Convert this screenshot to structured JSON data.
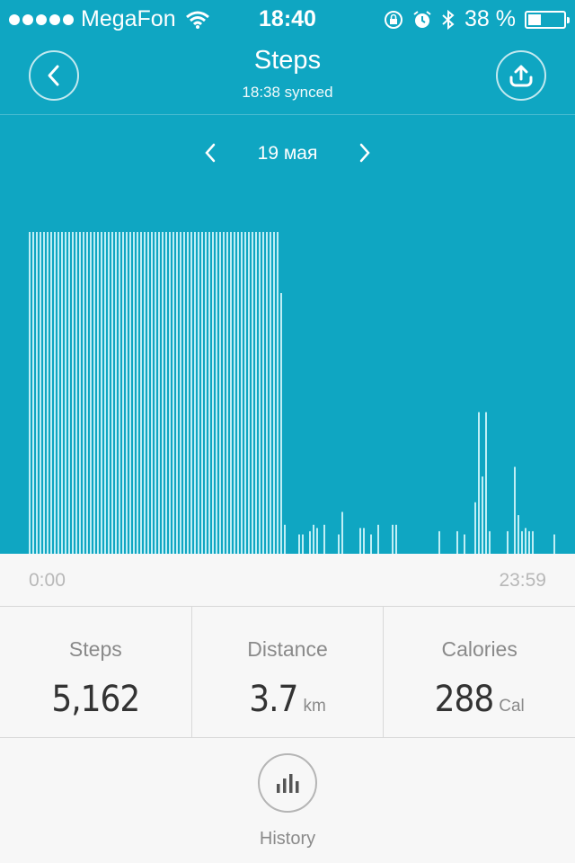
{
  "status_bar": {
    "carrier": "MegaFon",
    "time": "18:40",
    "battery_percent": "38 %",
    "battery_level": 0.38,
    "icons": [
      "signal-dots-icon",
      "wifi-icon",
      "rotation-lock-icon",
      "alarm-icon",
      "bluetooth-icon",
      "battery-icon"
    ]
  },
  "header": {
    "title": "Steps",
    "subtitle": "18:38 synced",
    "back_icon": "chevron-left-icon",
    "upload_icon": "upload-icon"
  },
  "date_nav": {
    "date": "19 мая",
    "prev_icon": "chevron-left-icon",
    "next_icon": "chevron-right-icon"
  },
  "chart_data": {
    "type": "bar",
    "x_start_label": "0:00",
    "x_end_label": "23:59",
    "bar_color": "#bfeef5",
    "background": "#0fa6c2",
    "values": [
      100,
      100,
      100,
      100,
      100,
      100,
      100,
      100,
      100,
      100,
      100,
      100,
      100,
      100,
      100,
      100,
      100,
      100,
      100,
      100,
      100,
      100,
      100,
      100,
      100,
      100,
      100,
      100,
      100,
      100,
      100,
      100,
      100,
      100,
      100,
      100,
      100,
      100,
      100,
      100,
      100,
      100,
      100,
      100,
      100,
      100,
      100,
      100,
      100,
      100,
      100,
      100,
      100,
      100,
      100,
      100,
      100,
      100,
      100,
      100,
      100,
      100,
      100,
      100,
      100,
      100,
      100,
      100,
      100,
      100,
      81,
      9,
      0,
      0,
      0,
      6,
      6,
      0,
      7,
      9,
      8,
      0,
      9,
      0,
      0,
      0,
      6,
      13,
      0,
      0,
      0,
      0,
      8,
      8,
      0,
      6,
      0,
      9,
      0,
      0,
      0,
      9,
      9,
      0,
      0,
      0,
      0,
      0,
      0,
      0,
      0,
      0,
      0,
      0,
      7,
      0,
      0,
      0,
      0,
      7,
      0,
      6,
      0,
      0,
      16,
      44,
      24,
      44,
      7,
      0,
      0,
      0,
      0,
      7,
      0,
      27,
      12,
      7,
      8,
      7,
      7,
      0,
      0,
      0,
      0,
      0,
      6,
      0,
      0,
      0,
      0,
      0,
      0,
      0,
      0,
      10,
      0,
      0,
      0,
      0,
      0,
      0,
      0,
      0
    ]
  },
  "stats": [
    {
      "label": "Steps",
      "value": "5,162",
      "unit": ""
    },
    {
      "label": "Distance",
      "value": "3.7",
      "unit": "km"
    },
    {
      "label": "Calories",
      "value": "288",
      "unit": "Cal"
    }
  ],
  "history": {
    "label": "History",
    "icon": "bar-chart-icon"
  }
}
